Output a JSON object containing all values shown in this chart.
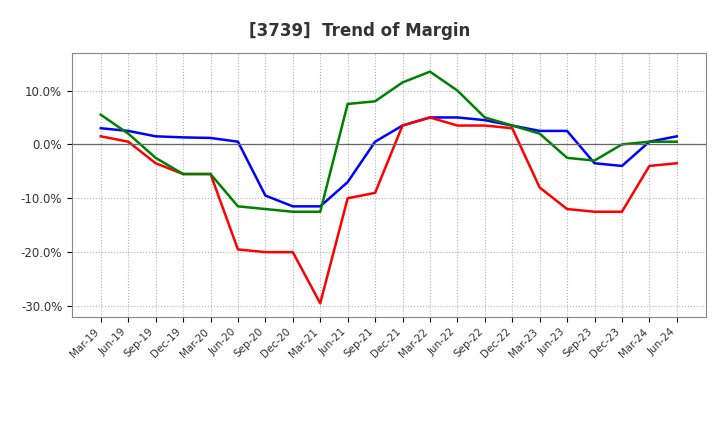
{
  "title": "[3739]  Trend of Margin",
  "x_labels": [
    "Mar-19",
    "Jun-19",
    "Sep-19",
    "Dec-19",
    "Mar-20",
    "Jun-20",
    "Sep-20",
    "Dec-20",
    "Mar-21",
    "Jun-21",
    "Sep-21",
    "Dec-21",
    "Mar-22",
    "Jun-22",
    "Sep-22",
    "Dec-22",
    "Mar-23",
    "Jun-23",
    "Sep-23",
    "Dec-23",
    "Mar-24",
    "Jun-24"
  ],
  "ordinary_income": [
    3.0,
    2.5,
    1.5,
    1.3,
    1.2,
    0.5,
    -9.5,
    -11.5,
    -11.5,
    -7.0,
    0.5,
    3.5,
    5.0,
    5.0,
    4.5,
    3.5,
    2.5,
    2.5,
    -3.5,
    -4.0,
    0.5,
    1.5
  ],
  "net_income": [
    1.5,
    0.5,
    -3.5,
    -5.5,
    -5.5,
    -19.5,
    -20.0,
    -20.0,
    -29.5,
    -10.0,
    -9.0,
    3.5,
    5.0,
    3.5,
    3.5,
    3.0,
    -8.0,
    -12.0,
    -12.5,
    -12.5,
    -4.0,
    -3.5
  ],
  "operating_cashflow": [
    5.5,
    2.0,
    -2.5,
    -5.5,
    -5.5,
    -11.5,
    -12.0,
    -12.5,
    -12.5,
    7.5,
    8.0,
    11.5,
    13.5,
    10.0,
    5.0,
    3.5,
    2.0,
    -2.5,
    -3.0,
    0.0,
    0.5,
    0.5
  ],
  "ylim": [
    -32,
    17
  ],
  "yticks": [
    -30,
    -20,
    -10,
    0,
    10
  ],
  "ytick_labels": [
    "-30.0%",
    "-20.0%",
    "-10.0%",
    "0.0%",
    "10.0%"
  ],
  "colors": {
    "ordinary_income": "#0000FF",
    "net_income": "#FF0000",
    "operating_cashflow": "#008000"
  },
  "background_color": "#FFFFFF",
  "plot_bg_color": "#FFFFFF",
  "grid_color": "#AAAAAA",
  "line_width": 1.8
}
